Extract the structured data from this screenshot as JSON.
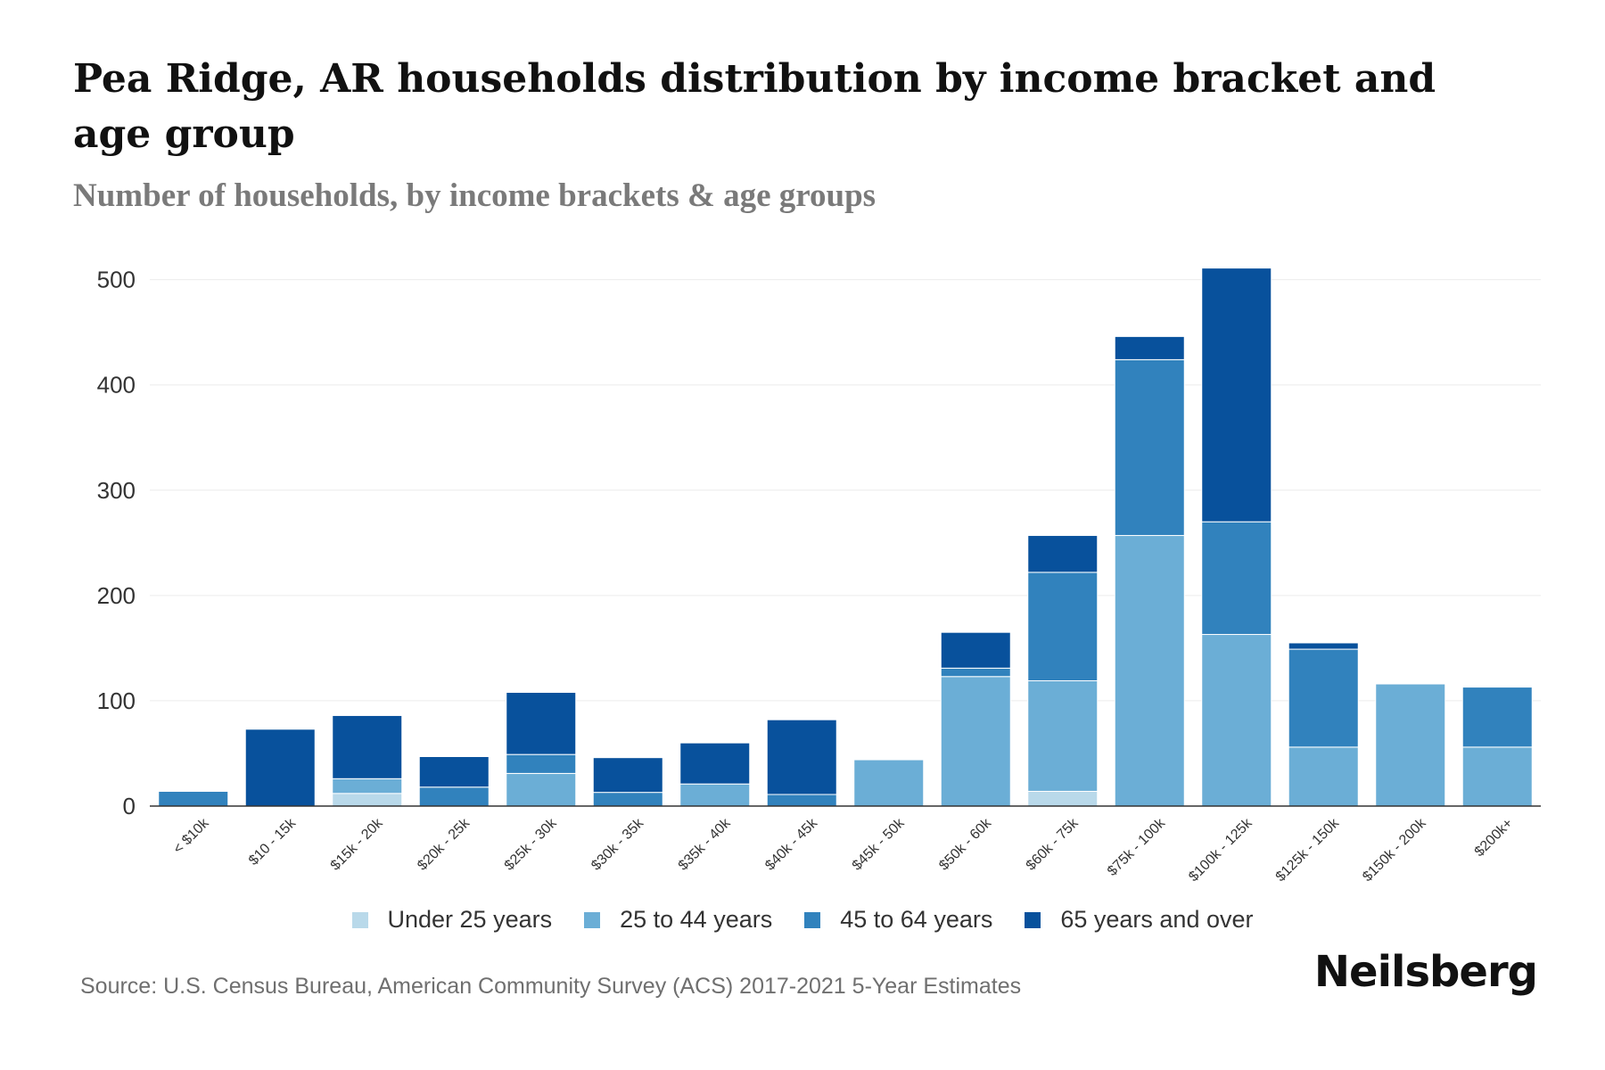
{
  "header": {
    "title": "Pea Ridge, AR households distribution by income bracket and age group",
    "subtitle": "Number of households, by income brackets & age groups"
  },
  "footer": {
    "source": "Source: U.S. Census Bureau, American Community Survey (ACS) 2017-2021 5-Year Estimates",
    "brand": "Neilsberg"
  },
  "chart_data": {
    "type": "bar",
    "stacked": true,
    "title": "Pea Ridge, AR households distribution by income bracket and age group",
    "subtitle": "Number of households, by income brackets & age groups",
    "xlabel": "",
    "ylabel": "",
    "ylim": [
      0,
      520
    ],
    "yticks": [
      0,
      100,
      200,
      300,
      400,
      500
    ],
    "grid": true,
    "legend_position": "bottom",
    "categories": [
      "< $10k",
      "$10 - 15k",
      "$15k - 20k",
      "$20k - 25k",
      "$25k - 30k",
      "$30k - 35k",
      "$35k - 40k",
      "$40k - 45k",
      "$45k - 50k",
      "$50k - 60k",
      "$60k - 75k",
      "$75k - 100k",
      "$100k - 125k",
      "$125k - 150k",
      "$150k - 200k",
      "$200k+"
    ],
    "series": [
      {
        "name": "Under 25 years",
        "color": "#b9d9ea",
        "values": [
          0,
          0,
          12,
          0,
          0,
          0,
          0,
          0,
          0,
          0,
          14,
          0,
          0,
          0,
          0,
          0
        ]
      },
      {
        "name": "25 to 44 years",
        "color": "#6baed6",
        "values": [
          0,
          0,
          14,
          0,
          31,
          0,
          21,
          0,
          44,
          123,
          105,
          257,
          163,
          56,
          116,
          56
        ]
      },
      {
        "name": "45 to 64 years",
        "color": "#3182bd",
        "values": [
          14,
          0,
          0,
          18,
          18,
          13,
          0,
          11,
          0,
          8,
          103,
          167,
          107,
          93,
          0,
          57
        ]
      },
      {
        "name": "65 years and over",
        "color": "#08519c",
        "values": [
          0,
          73,
          60,
          29,
          59,
          33,
          39,
          71,
          0,
          34,
          35,
          22,
          241,
          6,
          0,
          0
        ]
      }
    ]
  }
}
